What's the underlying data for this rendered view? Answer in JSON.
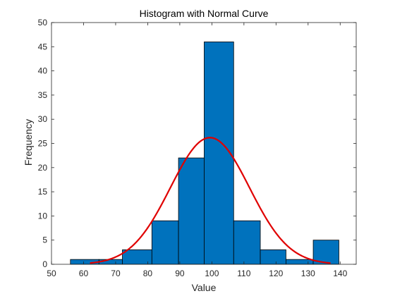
{
  "chart_data": {
    "type": "bar",
    "title": "Histogram with Normal Curve",
    "xlabel": "Value",
    "ylabel": "Frequency",
    "xlim": [
      50,
      145
    ],
    "ylim": [
      0,
      50
    ],
    "xticks": [
      50,
      60,
      70,
      80,
      90,
      100,
      110,
      120,
      130,
      140
    ],
    "yticks": [
      0,
      5,
      10,
      15,
      20,
      25,
      30,
      35,
      40,
      45,
      50
    ],
    "grid": false,
    "bins": [
      {
        "x0": 55.9,
        "x1": 64.8,
        "count": 1
      },
      {
        "x0": 64.8,
        "x1": 72.1,
        "count": 1
      },
      {
        "x0": 72.1,
        "x1": 81.3,
        "count": 3
      },
      {
        "x0": 81.3,
        "x1": 89.6,
        "count": 9
      },
      {
        "x0": 89.6,
        "x1": 97.6,
        "count": 22
      },
      {
        "x0": 97.6,
        "x1": 106.8,
        "count": 46
      },
      {
        "x0": 106.8,
        "x1": 115.1,
        "count": 9
      },
      {
        "x0": 115.1,
        "x1": 123.1,
        "count": 3
      },
      {
        "x0": 123.1,
        "x1": 131.6,
        "count": 1
      },
      {
        "x0": 131.6,
        "x1": 139.6,
        "count": 5
      }
    ],
    "curve": {
      "type": "normal",
      "mean": 99.4,
      "sd": 12.3,
      "peak": 26.2,
      "x_from": 62,
      "x_to": 137
    },
    "colors": {
      "bar_fill": "#0072bd",
      "bar_edge": "#000000",
      "curve": "#e00000",
      "axis": "#262626"
    }
  }
}
